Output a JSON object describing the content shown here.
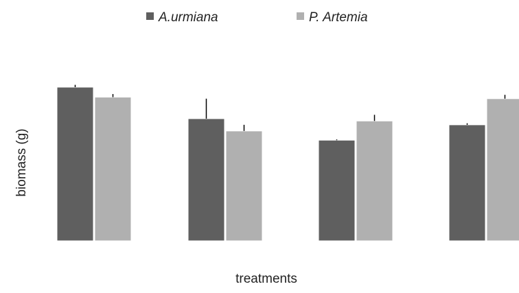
{
  "chart_data": {
    "type": "bar",
    "title": "",
    "xlabel": "treatments",
    "ylabel": "biomass (g)",
    "ylim": [
      0,
      100
    ],
    "grid": false,
    "legend_position": "top",
    "categories": [
      "",
      "",
      "",
      ""
    ],
    "series": [
      {
        "name": "A.urmiana",
        "color": "#5f5f5f",
        "values": [
          100,
          79.5,
          65.5,
          75.5
        ],
        "errors": [
          1.5,
          13,
          0.5,
          1
        ]
      },
      {
        "name": "P. Artemia",
        "color": "#b0b0b0",
        "values": [
          93.5,
          71.5,
          78,
          92.5
        ],
        "errors": [
          2,
          4,
          4,
          2.5
        ]
      }
    ]
  }
}
